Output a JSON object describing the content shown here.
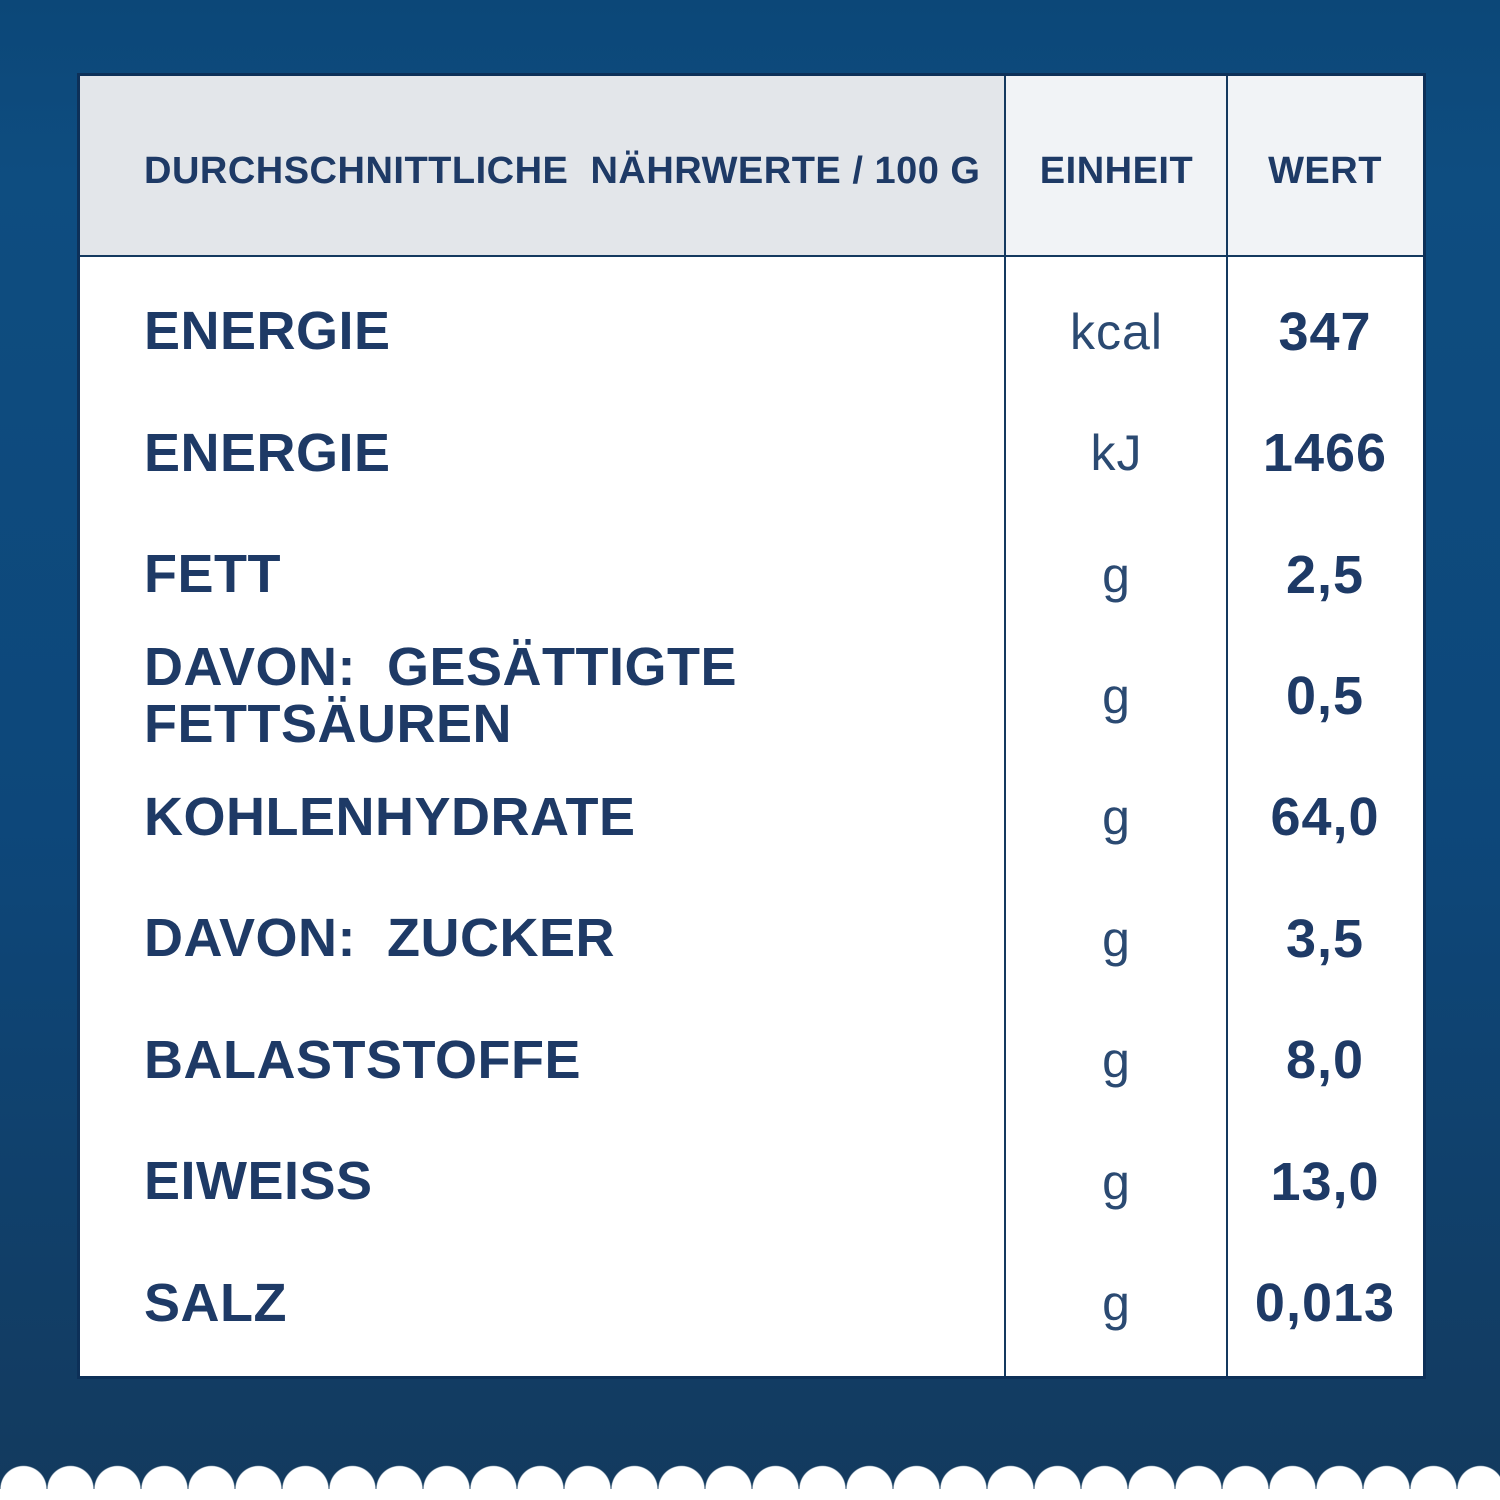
{
  "table": {
    "header": {
      "label": "DURCHSCHNITTLICHE  NÄHRWERTE / 100 G",
      "unit": "EINHEIT",
      "value": "WERT"
    },
    "rows": [
      {
        "label": "ENERGIE",
        "unit": "kcal",
        "value": "347"
      },
      {
        "label": "ENERGIE",
        "unit": "kJ",
        "value": "1466"
      },
      {
        "label": "FETT",
        "unit": "g",
        "value": "2,5"
      },
      {
        "label": "DAVON:  GESÄTTIGTE FETTSÄUREN",
        "unit": "g",
        "value": "0,5"
      },
      {
        "label": "KOHLENHYDRATE",
        "unit": "g",
        "value": "64,0"
      },
      {
        "label": "DAVON:  ZUCKER",
        "unit": "g",
        "value": "3,5"
      },
      {
        "label": "BALASTSTOFFE",
        "unit": "g",
        "value": "8,0"
      },
      {
        "label": "EIWEISS",
        "unit": "g",
        "value": "13,0"
      },
      {
        "label": "SALZ",
        "unit": "g",
        "value": "0,013"
      }
    ]
  },
  "colors": {
    "background_top": "#0e4d80",
    "background_bottom": "#133a5e",
    "card_body": "#ffffff",
    "header_label_bg": "#e3e6ea",
    "header_unit_value_bg": "#f1f3f6",
    "divider": "#14395f",
    "text_navy": "#1e3a66"
  }
}
